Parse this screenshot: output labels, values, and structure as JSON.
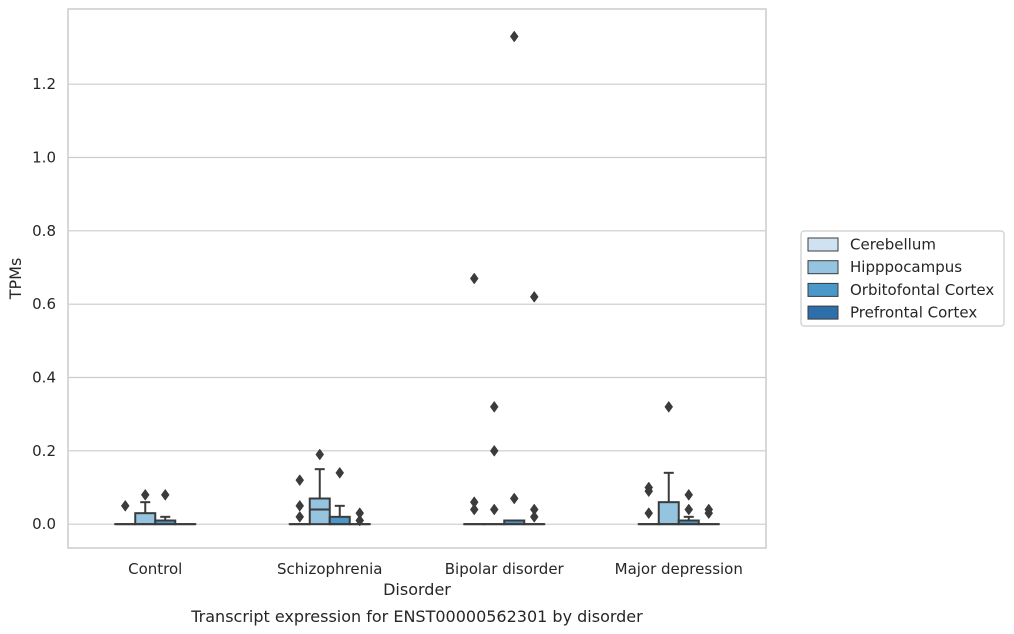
{
  "chart_data": {
    "type": "box",
    "xlabel": "Disorder",
    "ylabel": "TPMs",
    "caption": "Transcript expression for ENST00000562301 by disorder",
    "ylim": [
      -0.065,
      1.405
    ],
    "yticks": [
      0.0,
      0.2,
      0.4,
      0.6,
      0.8,
      1.0,
      1.2
    ],
    "ytick_labels": [
      "0.0",
      "0.2",
      "0.4",
      "0.6",
      "0.8",
      "1.0",
      "1.2"
    ],
    "grid": "horizontal",
    "legend_position": "right",
    "categories": [
      "Control",
      "Schizophrenia",
      "Bipolar disorder",
      "Major depression"
    ],
    "series": [
      {
        "name": "Cerebellum",
        "color": "#d0e1f2",
        "boxes": [
          {
            "q1": 0,
            "median": 0,
            "q3": 0,
            "whisker_low": 0,
            "whisker_high": 0,
            "outliers": [
              0.05
            ]
          },
          {
            "q1": 0,
            "median": 0,
            "q3": 0,
            "whisker_low": 0,
            "whisker_high": 0,
            "outliers": [
              0.12,
              0.05,
              0.02
            ]
          },
          {
            "q1": 0,
            "median": 0,
            "q3": 0,
            "whisker_low": 0,
            "whisker_high": 0,
            "outliers": [
              0.67,
              0.06,
              0.04
            ]
          },
          {
            "q1": 0,
            "median": 0,
            "q3": 0,
            "whisker_low": 0,
            "whisker_high": 0,
            "outliers": [
              0.1,
              0.09,
              0.03
            ]
          }
        ]
      },
      {
        "name": "Hipppocampus",
        "color": "#94c4df",
        "boxes": [
          {
            "q1": 0,
            "median": 0,
            "q3": 0.03,
            "whisker_low": 0,
            "whisker_high": 0.06,
            "outliers": [
              0.08
            ]
          },
          {
            "q1": 0,
            "median": 0.04,
            "q3": 0.07,
            "whisker_low": 0,
            "whisker_high": 0.15,
            "outliers": [
              0.19
            ]
          },
          {
            "q1": 0,
            "median": 0,
            "q3": 0,
            "whisker_low": 0,
            "whisker_high": 0,
            "outliers": [
              0.32,
              0.2,
              0.04
            ]
          },
          {
            "q1": 0,
            "median": 0,
            "q3": 0.06,
            "whisker_low": 0,
            "whisker_high": 0.14,
            "outliers": [
              0.32
            ]
          }
        ]
      },
      {
        "name": "Orbitofontal Cortex",
        "color": "#4a98c9",
        "boxes": [
          {
            "q1": 0,
            "median": 0,
            "q3": 0.01,
            "whisker_low": 0,
            "whisker_high": 0.02,
            "outliers": [
              0.08
            ]
          },
          {
            "q1": 0,
            "median": 0,
            "q3": 0.02,
            "whisker_low": 0,
            "whisker_high": 0.05,
            "outliers": [
              0.14
            ]
          },
          {
            "q1": 0,
            "median": 0,
            "q3": 0.01,
            "whisker_low": 0,
            "whisker_high": 0.01,
            "outliers": [
              1.33,
              0.07
            ]
          },
          {
            "q1": 0,
            "median": 0,
            "q3": 0.01,
            "whisker_low": 0,
            "whisker_high": 0.02,
            "outliers": [
              0.08,
              0.04
            ]
          }
        ]
      },
      {
        "name": "Prefrontal Cortex",
        "color": "#2c6fab",
        "boxes": [
          {
            "q1": 0,
            "median": 0,
            "q3": 0,
            "whisker_low": 0,
            "whisker_high": 0,
            "outliers": []
          },
          {
            "q1": 0,
            "median": 0,
            "q3": 0,
            "whisker_low": 0,
            "whisker_high": 0,
            "outliers": [
              0.03,
              0.01
            ]
          },
          {
            "q1": 0,
            "median": 0,
            "q3": 0,
            "whisker_low": 0,
            "whisker_high": 0,
            "outliers": [
              0.62,
              0.04,
              0.02
            ]
          },
          {
            "q1": 0,
            "median": 0,
            "q3": 0,
            "whisker_low": 0,
            "whisker_high": 0,
            "outliers": [
              0.04,
              0.03
            ]
          }
        ]
      }
    ]
  }
}
